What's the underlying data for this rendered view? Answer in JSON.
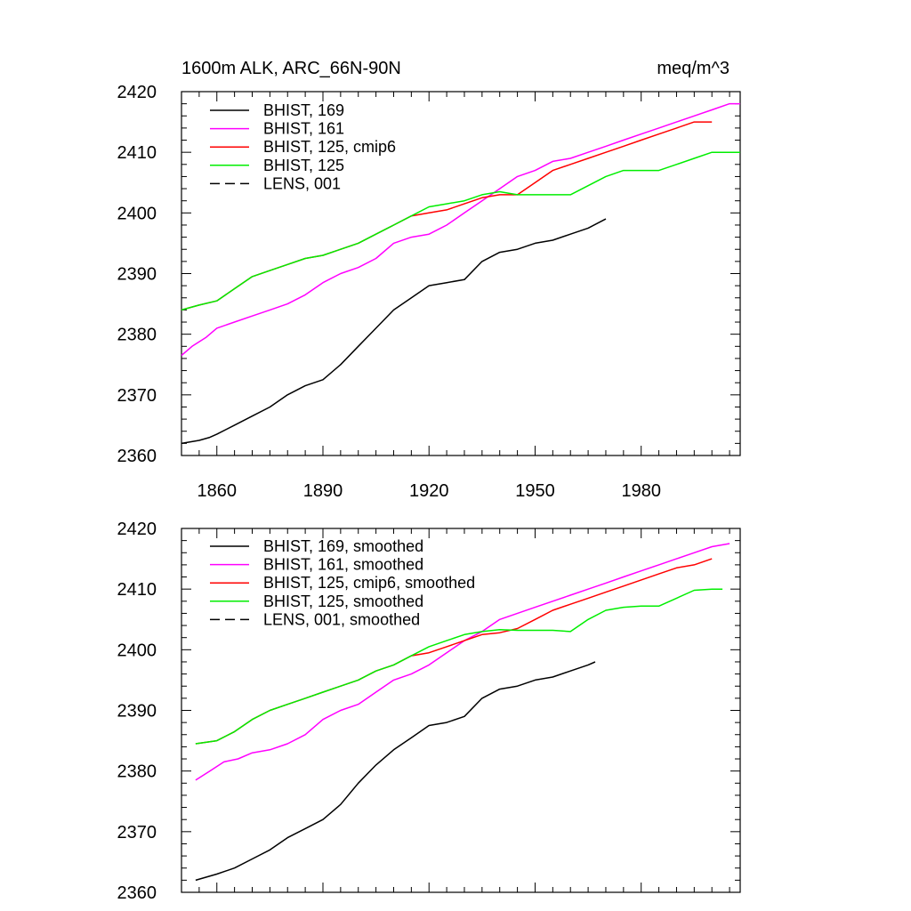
{
  "figure": {
    "title_left": "1600m ALK, ARC_66N-90N",
    "title_right": "meq/m^3"
  },
  "colors": {
    "black": "#000000",
    "magenta": "#ff00ff",
    "red": "#ff0000",
    "green": "#00ee00"
  },
  "chart_data": [
    {
      "type": "line",
      "title": "1600m ALK, ARC_66N-90N",
      "units": "meq/m^3",
      "xlim": [
        1850,
        2008
      ],
      "ylim": [
        2360,
        2420
      ],
      "xticks": [
        1860,
        1890,
        1920,
        1950,
        1980
      ],
      "yticks": [
        2360,
        2370,
        2380,
        2390,
        2400,
        2410,
        2420
      ],
      "show_x_tick_labels": true,
      "grid": false,
      "legend_position": "top-left",
      "series": [
        {
          "name": "BHIST, 169",
          "color": "#000000",
          "dash": "solid",
          "x": [
            1850,
            1855,
            1858,
            1860,
            1865,
            1870,
            1875,
            1880,
            1885,
            1890,
            1895,
            1900,
            1905,
            1910,
            1915,
            1920,
            1925,
            1930,
            1935,
            1940,
            1945,
            1950,
            1955,
            1960,
            1965,
            1970
          ],
          "y": [
            2362,
            2362.5,
            2363,
            2363.5,
            2365,
            2366.5,
            2368,
            2370,
            2371.5,
            2372.5,
            2375,
            2378,
            2381,
            2384,
            2386,
            2388,
            2388.5,
            2389,
            2392,
            2393.5,
            2394,
            2395,
            2395.5,
            2396.5,
            2397.5,
            2399
          ]
        },
        {
          "name": "BHIST, 161",
          "color": "#ff00ff",
          "dash": "solid",
          "x": [
            1850,
            1853,
            1857,
            1860,
            1865,
            1870,
            1875,
            1880,
            1885,
            1890,
            1895,
            1900,
            1905,
            1910,
            1915,
            1920,
            1925,
            1930,
            1935,
            1940,
            1945,
            1950,
            1955,
            1960,
            1965,
            1970,
            1975,
            1980,
            1985,
            1990,
            1995,
            2000,
            2005,
            2008
          ],
          "y": [
            2376.5,
            2378,
            2379.5,
            2381,
            2382,
            2383,
            2384,
            2385,
            2386.5,
            2388.5,
            2390,
            2391,
            2392.5,
            2395,
            2396,
            2396.5,
            2398,
            2400,
            2402,
            2404,
            2406,
            2407,
            2408.5,
            2409,
            2410,
            2411,
            2412,
            2413,
            2414,
            2415,
            2416,
            2417,
            2418,
            2418
          ]
        },
        {
          "name": "BHIST, 125, cmip6",
          "color": "#ff0000",
          "dash": "solid",
          "x": [
            1850,
            1855,
            1860,
            1865,
            1870,
            1875,
            1880,
            1885,
            1890,
            1895,
            1900,
            1905,
            1910,
            1915,
            1920,
            1925,
            1930,
            1935,
            1940,
            1945,
            1950,
            1955,
            1960,
            1965,
            1970,
            1975,
            1980,
            1985,
            1990,
            1995,
            2000
          ],
          "y": [
            2384,
            2384.8,
            2385.5,
            2387.5,
            2389.5,
            2390.5,
            2391.5,
            2392.5,
            2393,
            2394,
            2395,
            2396.5,
            2398,
            2399.5,
            2400,
            2400.5,
            2401.5,
            2402.5,
            2403,
            2403,
            2405,
            2407,
            2408,
            2409,
            2410,
            2411,
            2412,
            2413,
            2414,
            2415,
            2415
          ]
        },
        {
          "name": "BHIST, 125",
          "color": "#00ee00",
          "dash": "solid",
          "x": [
            1850,
            1855,
            1860,
            1865,
            1870,
            1875,
            1880,
            1885,
            1890,
            1895,
            1900,
            1905,
            1910,
            1915,
            1920,
            1925,
            1930,
            1935,
            1940,
            1945,
            1950,
            1955,
            1960,
            1965,
            1970,
            1975,
            1980,
            1985,
            1990,
            1995,
            2000,
            2005,
            2008
          ],
          "y": [
            2384,
            2384.8,
            2385.5,
            2387.5,
            2389.5,
            2390.5,
            2391.5,
            2392.5,
            2393,
            2394,
            2395,
            2396.5,
            2398,
            2399.5,
            2401,
            2401.5,
            2402,
            2403,
            2403.5,
            2403,
            2403,
            2403,
            2403,
            2404.5,
            2406,
            2407,
            2407,
            2407,
            2408,
            2409,
            2410,
            2410,
            2410
          ]
        },
        {
          "name": "LENS, 001",
          "color": "#000000",
          "dash": "dashed",
          "x": [],
          "y": []
        }
      ]
    },
    {
      "type": "line",
      "xlim": [
        1850,
        2008
      ],
      "ylim": [
        2360,
        2420
      ],
      "xticks": [
        1860,
        1890,
        1920,
        1950,
        1980
      ],
      "yticks": [
        2360,
        2370,
        2380,
        2390,
        2400,
        2410,
        2420
      ],
      "show_x_tick_labels": false,
      "grid": false,
      "legend_position": "top-left",
      "series": [
        {
          "name": "BHIST, 169, smoothed",
          "color": "#000000",
          "dash": "solid",
          "x": [
            1854,
            1860,
            1865,
            1870,
            1875,
            1880,
            1885,
            1890,
            1895,
            1900,
            1905,
            1910,
            1915,
            1920,
            1925,
            1930,
            1935,
            1940,
            1945,
            1950,
            1955,
            1960,
            1965,
            1967
          ],
          "y": [
            2362,
            2363,
            2364,
            2365.5,
            2367,
            2369,
            2370.5,
            2372,
            2374.5,
            2378,
            2381,
            2383.5,
            2385.5,
            2387.5,
            2388,
            2389,
            2392,
            2393.5,
            2394,
            2395,
            2395.5,
            2396.5,
            2397.5,
            2398
          ]
        },
        {
          "name": "BHIST, 161, smoothed",
          "color": "#ff00ff",
          "dash": "solid",
          "x": [
            1854,
            1858,
            1862,
            1866,
            1870,
            1875,
            1880,
            1885,
            1890,
            1895,
            1900,
            1905,
            1910,
            1915,
            1920,
            1925,
            1930,
            1935,
            1940,
            1945,
            1950,
            1955,
            1960,
            1965,
            1970,
            1975,
            1980,
            1985,
            1990,
            1995,
            2000,
            2005
          ],
          "y": [
            2378.5,
            2380,
            2381.5,
            2382,
            2383,
            2383.5,
            2384.5,
            2386,
            2388.5,
            2390,
            2391,
            2393,
            2395,
            2396,
            2397.5,
            2399.5,
            2401.5,
            2403,
            2405,
            2406,
            2407,
            2408,
            2409,
            2410,
            2411,
            2412,
            2413,
            2414,
            2415,
            2416,
            2417,
            2417.5
          ]
        },
        {
          "name": "BHIST, 125, cmip6, smoothed",
          "color": "#ff0000",
          "dash": "solid",
          "x": [
            1854,
            1860,
            1865,
            1870,
            1875,
            1880,
            1885,
            1890,
            1895,
            1900,
            1905,
            1910,
            1915,
            1920,
            1925,
            1930,
            1935,
            1940,
            1945,
            1950,
            1955,
            1960,
            1965,
            1970,
            1975,
            1980,
            1985,
            1990,
            1995,
            2000
          ],
          "y": [
            2384.5,
            2385,
            2386.5,
            2388.5,
            2390,
            2391,
            2392,
            2393,
            2394,
            2395,
            2396.5,
            2397.5,
            2399,
            2399.5,
            2400.5,
            2401.5,
            2402.5,
            2402.8,
            2403.5,
            2405,
            2406.5,
            2407.5,
            2408.5,
            2409.5,
            2410.5,
            2411.5,
            2412.5,
            2413.5,
            2414,
            2415
          ]
        },
        {
          "name": "BHIST, 125, smoothed",
          "color": "#00ee00",
          "dash": "solid",
          "x": [
            1854,
            1860,
            1865,
            1870,
            1875,
            1880,
            1885,
            1890,
            1895,
            1900,
            1905,
            1910,
            1915,
            1920,
            1925,
            1930,
            1935,
            1940,
            1945,
            1950,
            1955,
            1960,
            1965,
            1970,
            1975,
            1980,
            1985,
            1990,
            1995,
            2000,
            2003
          ],
          "y": [
            2384.5,
            2385,
            2386.5,
            2388.5,
            2390,
            2391,
            2392,
            2393,
            2394,
            2395,
            2396.5,
            2397.5,
            2399,
            2400.5,
            2401.5,
            2402.5,
            2403,
            2403.3,
            2403.2,
            2403.2,
            2403.2,
            2403,
            2405,
            2406.5,
            2407,
            2407.2,
            2407.2,
            2408.5,
            2409.8,
            2410,
            2410
          ]
        },
        {
          "name": "LENS, 001, smoothed",
          "color": "#000000",
          "dash": "dashed",
          "x": [],
          "y": []
        }
      ]
    }
  ]
}
